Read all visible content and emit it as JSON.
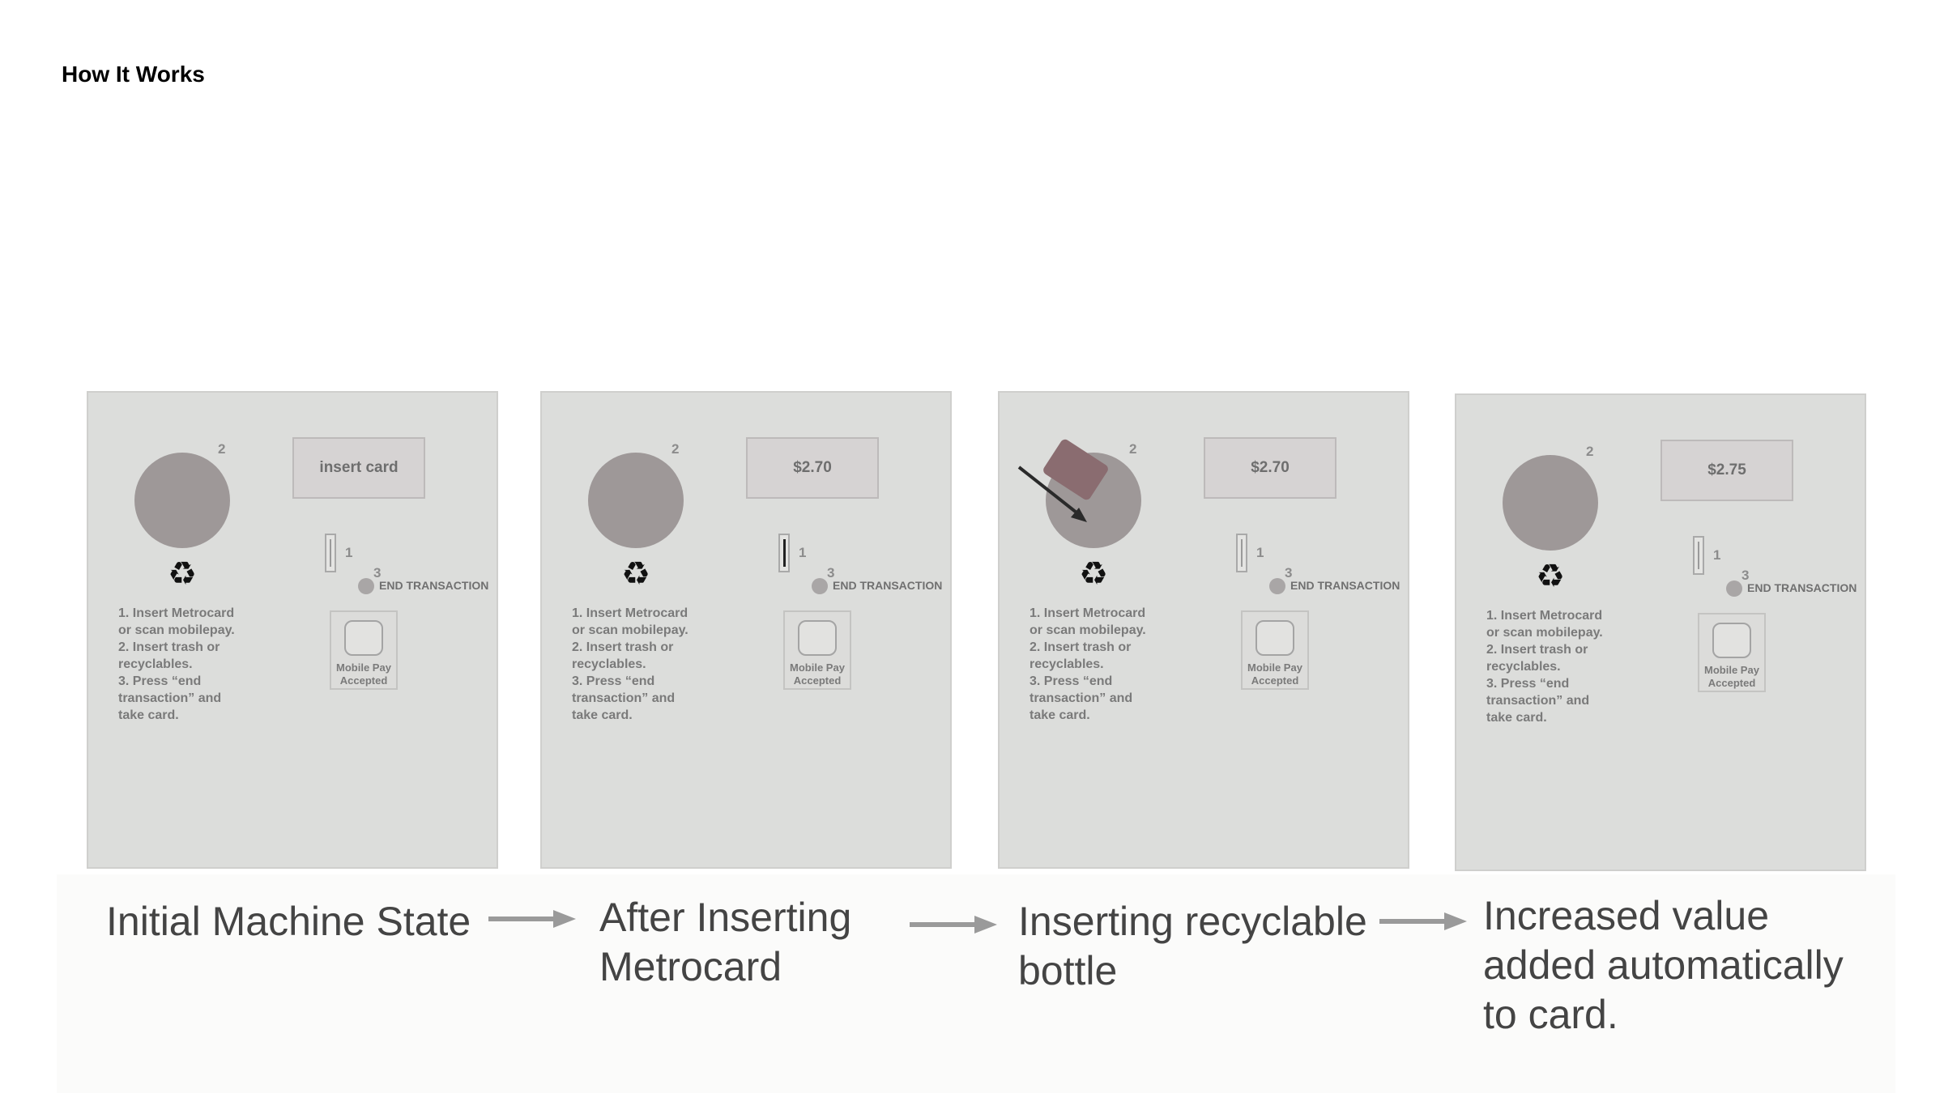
{
  "page": {
    "title": "How It Works"
  },
  "machine": {
    "bin_number": "2",
    "slot_number": "1",
    "end_number": "3",
    "end_label": "END TRANSACTION",
    "steps": [
      "1. Insert Metrocard",
      "or scan mobilepay.",
      "2. Insert trash or",
      "recyclables.",
      "3. Press “end",
      "transaction” and",
      "take card."
    ],
    "mobile_pay": [
      "Mobile Pay",
      "Accepted"
    ],
    "recycle_icon": "recycle-icon"
  },
  "panels": [
    {
      "display": "insert card",
      "caption": [
        "Initial Machine State"
      ]
    },
    {
      "display": "$2.70",
      "caption": [
        "After Inserting",
        "Metrocard"
      ]
    },
    {
      "display": "$2.70",
      "caption": [
        "Inserting recyclable",
        "bottle"
      ]
    },
    {
      "display": "$2.75",
      "caption": [
        "Increased value",
        "added automatically",
        "to card."
      ]
    }
  ],
  "colors": {
    "panel": "#dcdddb",
    "bin": "#9e9898",
    "card": "#8a6c70",
    "caption": "#444444",
    "arrow": "#9a9a9a"
  }
}
